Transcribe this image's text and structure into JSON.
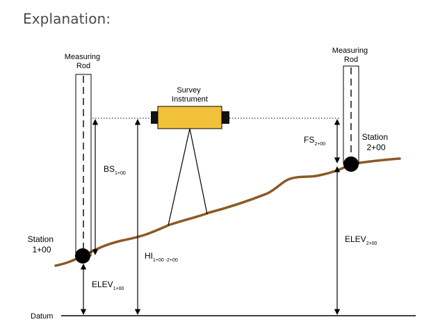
{
  "page": {
    "heading": "Explanation:"
  },
  "diagram": {
    "left_rod_label": [
      "Measuring",
      "Rod"
    ],
    "right_rod_label": [
      "Measuring",
      "Rod"
    ],
    "instrument_label": [
      "Survey",
      "Instrument"
    ],
    "station_left": [
      "Station",
      "1+00"
    ],
    "station_right": [
      "Station",
      "2+00"
    ],
    "bs": {
      "main": "BS",
      "sub": "1+00"
    },
    "fs": {
      "main": "FS",
      "sub": "2+00"
    },
    "hi": {
      "main": "HI",
      "sub": "1+00 -2+00"
    },
    "elev_left": {
      "main": "ELEV",
      "sub": "1+00"
    },
    "elev_right": {
      "main": "ELEV",
      "sub": "2+00"
    },
    "datum": "Datum"
  },
  "colors": {
    "ground": "#8a5a24",
    "instrument_fill": "#f2c13a",
    "instrument_caps": "#111111",
    "line": "#000000"
  }
}
